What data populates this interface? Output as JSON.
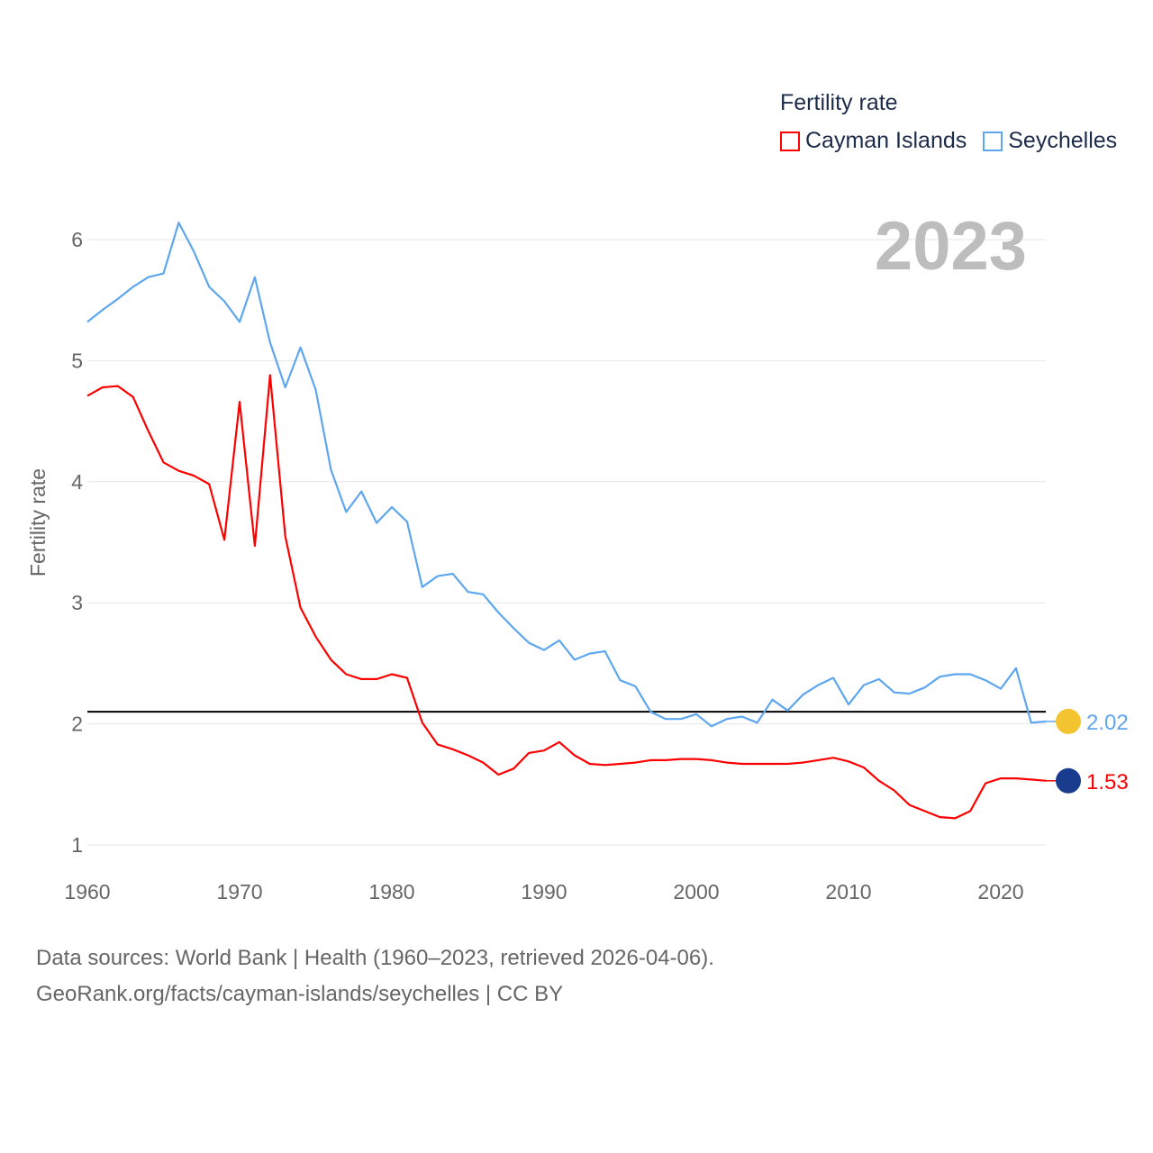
{
  "chart_data": {
    "type": "line",
    "title": "",
    "xlabel": "",
    "ylabel": "Fertility rate",
    "xlim": [
      1960,
      2023
    ],
    "ylim": [
      0.78,
      6.25
    ],
    "x_ticks": [
      1960,
      1970,
      1980,
      1990,
      2000,
      2010,
      2020
    ],
    "y_ticks": [
      1,
      2,
      3,
      4,
      5,
      6
    ],
    "grid": true,
    "legend": {
      "title": "Fertility rate",
      "position": "top-right"
    },
    "current_year": "2023",
    "reference_line": {
      "value": 2.1,
      "color": "#000000"
    },
    "x": [
      1960,
      1961,
      1962,
      1963,
      1964,
      1965,
      1966,
      1967,
      1968,
      1969,
      1970,
      1971,
      1972,
      1973,
      1974,
      1975,
      1976,
      1977,
      1978,
      1979,
      1980,
      1981,
      1982,
      1983,
      1984,
      1985,
      1986,
      1987,
      1988,
      1989,
      1990,
      1991,
      1992,
      1993,
      1994,
      1995,
      1996,
      1997,
      1998,
      1999,
      2000,
      2001,
      2002,
      2003,
      2004,
      2005,
      2006,
      2007,
      2008,
      2009,
      2010,
      2011,
      2012,
      2013,
      2014,
      2015,
      2016,
      2017,
      2018,
      2019,
      2020,
      2021,
      2022,
      2023
    ],
    "series": [
      {
        "name": "Cayman Islands",
        "color": "#ff0000",
        "end_label": "1.53",
        "values": [
          4.71,
          4.78,
          4.79,
          4.7,
          4.42,
          4.16,
          4.09,
          4.05,
          3.98,
          3.52,
          4.66,
          3.47,
          4.88,
          3.55,
          2.96,
          2.72,
          2.53,
          2.41,
          2.37,
          2.37,
          2.41,
          2.38,
          2.01,
          1.83,
          1.79,
          1.74,
          1.68,
          1.58,
          1.63,
          1.76,
          1.78,
          1.85,
          1.74,
          1.67,
          1.66,
          1.67,
          1.68,
          1.7,
          1.7,
          1.71,
          1.71,
          1.7,
          1.68,
          1.67,
          1.67,
          1.67,
          1.67,
          1.68,
          1.7,
          1.72,
          1.69,
          1.64,
          1.53,
          1.45,
          1.33,
          1.28,
          1.23,
          1.22,
          1.28,
          1.51,
          1.55,
          1.55,
          1.54,
          1.53
        ]
      },
      {
        "name": "Seychelles",
        "color": "#5ea6ee",
        "end_label": "2.02",
        "values": [
          5.32,
          5.42,
          5.51,
          5.61,
          5.69,
          5.72,
          6.14,
          5.9,
          5.61,
          5.49,
          5.32,
          5.69,
          5.15,
          4.78,
          5.11,
          4.76,
          4.1,
          3.75,
          3.92,
          3.66,
          3.79,
          3.67,
          3.13,
          3.22,
          3.24,
          3.09,
          3.07,
          2.92,
          2.79,
          2.67,
          2.61,
          2.69,
          2.53,
          2.58,
          2.6,
          2.36,
          2.31,
          2.1,
          2.04,
          2.04,
          2.08,
          1.98,
          2.04,
          2.06,
          2.01,
          2.2,
          2.11,
          2.24,
          2.32,
          2.38,
          2.16,
          2.32,
          2.37,
          2.26,
          2.25,
          2.3,
          2.39,
          2.41,
          2.41,
          2.36,
          2.29,
          2.46,
          2.01,
          2.02
        ]
      }
    ]
  },
  "footer": {
    "line1": "Data sources: World Bank | Health (1960–2023, retrieved 2026-04-06).",
    "line2": "GeoRank.org/facts/cayman-islands/seychelles | CC BY"
  }
}
